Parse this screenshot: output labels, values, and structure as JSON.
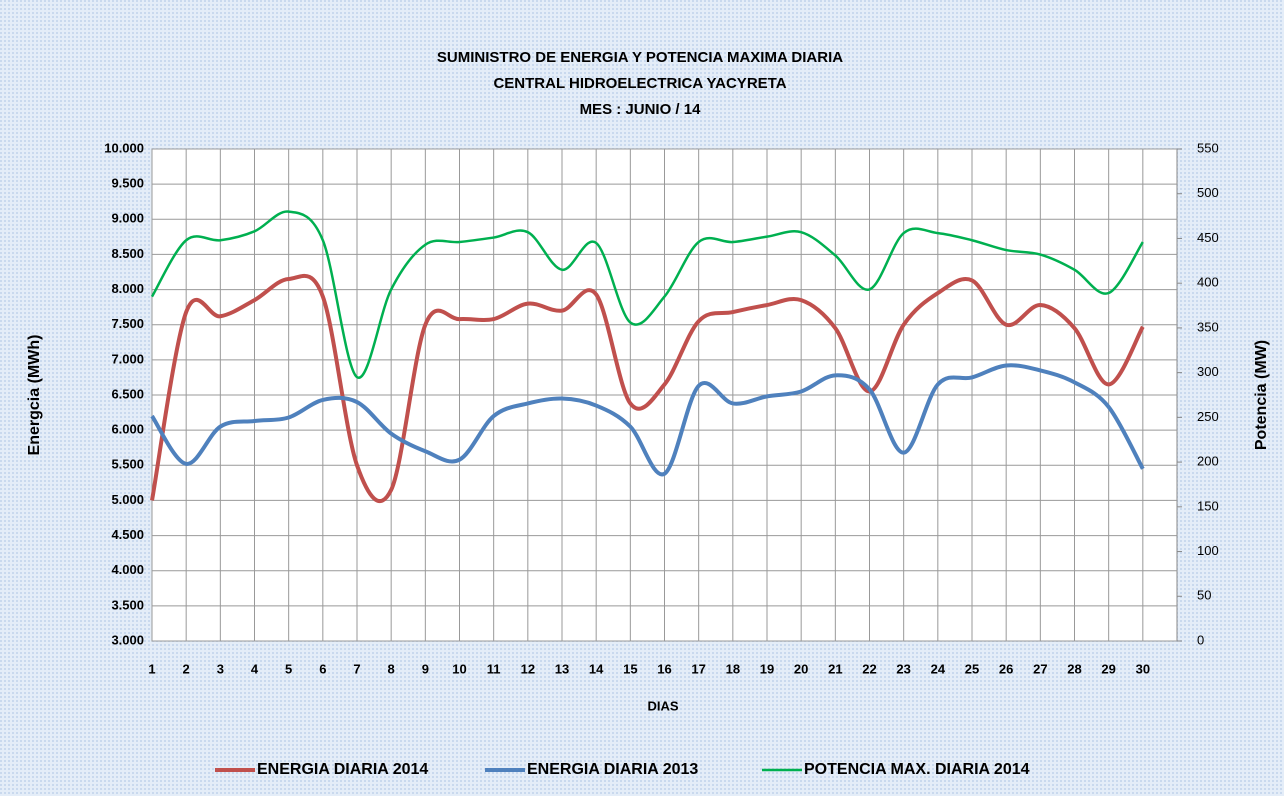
{
  "chart_data": {
    "type": "line",
    "title": "SUMINISTRO DE ENERGIA Y POTENCIA MAXIMA DIARIA",
    "subtitle": [
      "CENTRAL HIDROELECTRICA YACYRETA",
      "MES :  JUNIO / 14"
    ],
    "xlabel": "DIAS",
    "ylabel": "Energcia (MWh)",
    "y2label": "Potencia (MW)",
    "categories": [
      "1",
      "2",
      "3",
      "4",
      "5",
      "6",
      "7",
      "8",
      "9",
      "10",
      "11",
      "12",
      "13",
      "14",
      "15",
      "16",
      "17",
      "18",
      "19",
      "20",
      "21",
      "22",
      "23",
      "24",
      "25",
      "26",
      "27",
      "28",
      "29",
      "30"
    ],
    "series": [
      {
        "name": "ENERGIA DIARIA 2014",
        "color": "#c0504d",
        "values": [
          5000,
          7680,
          7620,
          7850,
          8150,
          7900,
          5500,
          5150,
          7500,
          7580,
          7580,
          7800,
          7700,
          7930,
          6380,
          6650,
          7550,
          7680,
          7780,
          7850,
          7450,
          6550,
          7500,
          7950,
          8130,
          7500,
          7780,
          7450,
          6650,
          7470
        ]
      },
      {
        "name": "ENERGIA DIARIA 2013",
        "color": "#4f81bd",
        "values": [
          6200,
          5520,
          6050,
          6130,
          6180,
          6430,
          6400,
          5950,
          5700,
          5580,
          6200,
          6380,
          6450,
          6350,
          6050,
          5380,
          6630,
          6380,
          6480,
          6550,
          6780,
          6580,
          5680,
          6650,
          6750,
          6920,
          6850,
          6680,
          6330,
          5450
        ]
      },
      {
        "name": "POTENCIA MAX. DIARIA 2014",
        "color": "#00b050",
        "axis": "y2",
        "values": [
          385,
          448,
          448,
          458,
          480,
          448,
          295,
          393,
          443,
          446,
          451,
          457,
          415,
          445,
          356,
          385,
          446,
          446,
          452,
          457,
          431,
          393,
          456,
          456,
          448,
          437,
          432,
          415,
          389,
          446
        ]
      }
    ],
    "ylim": [
      3000,
      10000
    ],
    "yticks": [
      {
        "value": 3000,
        "label": "3.000"
      },
      {
        "value": 3500,
        "label": "3.500"
      },
      {
        "value": 4000,
        "label": "4.000"
      },
      {
        "value": 4500,
        "label": "4.500"
      },
      {
        "value": 5000,
        "label": "5.000"
      },
      {
        "value": 5500,
        "label": "5.500"
      },
      {
        "value": 6000,
        "label": "6.000"
      },
      {
        "value": 6500,
        "label": "6.500"
      },
      {
        "value": 7000,
        "label": "7.000"
      },
      {
        "value": 7500,
        "label": "7.500"
      },
      {
        "value": 8000,
        "label": "8.000"
      },
      {
        "value": 8500,
        "label": "8.500"
      },
      {
        "value": 9000,
        "label": "9.000"
      },
      {
        "value": 9500,
        "label": "9.500"
      },
      {
        "value": 10000,
        "label": "10.000"
      }
    ],
    "y2lim": [
      0,
      550
    ],
    "y2ticks": [
      0,
      50,
      100,
      150,
      200,
      250,
      300,
      350,
      400,
      450,
      500,
      550
    ],
    "grid": true,
    "legend": "bottom"
  }
}
